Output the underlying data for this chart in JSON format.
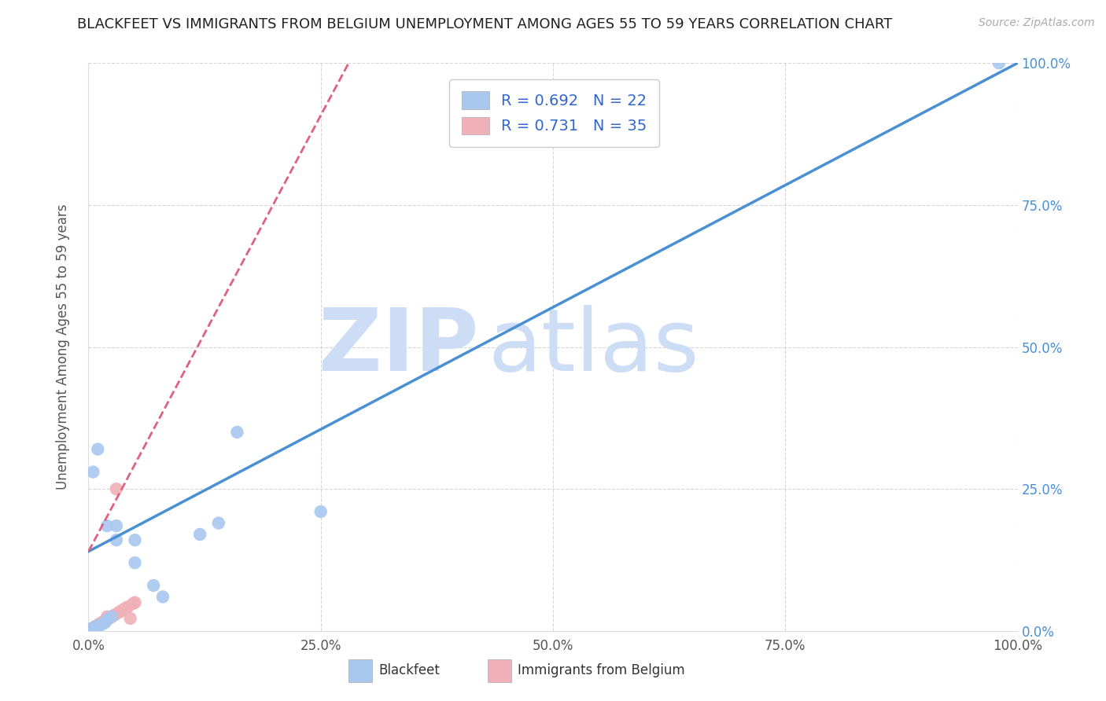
{
  "title": "BLACKFEET VS IMMIGRANTS FROM BELGIUM UNEMPLOYMENT AMONG AGES 55 TO 59 YEARS CORRELATION CHART",
  "source": "Source: ZipAtlas.com",
  "ylabel": "Unemployment Among Ages 55 to 59 years",
  "watermark": "ZIPatlas",
  "xlim": [
    0.0,
    1.0
  ],
  "ylim": [
    0.0,
    1.0
  ],
  "xticks": [
    0.0,
    0.25,
    0.5,
    0.75,
    1.0
  ],
  "yticks": [
    0.0,
    0.25,
    0.5,
    0.75,
    1.0
  ],
  "xticklabels": [
    "0.0%",
    "25.0%",
    "50.0%",
    "75.0%",
    "100.0%"
  ],
  "yticklabels_right": [
    "0.0%",
    "25.0%",
    "50.0%",
    "75.0%",
    "100.0%"
  ],
  "blackfeet_x": [
    0.005,
    0.007,
    0.01,
    0.012,
    0.015,
    0.018,
    0.02,
    0.025,
    0.03,
    0.05,
    0.14,
    0.16,
    0.25,
    0.98,
    0.005,
    0.01,
    0.02,
    0.03,
    0.05,
    0.07,
    0.08,
    0.12
  ],
  "blackfeet_y": [
    0.005,
    0.007,
    0.008,
    0.01,
    0.012,
    0.015,
    0.02,
    0.025,
    0.185,
    0.16,
    0.19,
    0.35,
    0.21,
    1.0,
    0.28,
    0.32,
    0.185,
    0.16,
    0.12,
    0.08,
    0.06,
    0.17
  ],
  "belgium_x": [
    0.0,
    0.001,
    0.002,
    0.003,
    0.004,
    0.005,
    0.006,
    0.007,
    0.008,
    0.009,
    0.01,
    0.011,
    0.012,
    0.013,
    0.014,
    0.015,
    0.016,
    0.017,
    0.018,
    0.019,
    0.02,
    0.022,
    0.025,
    0.028,
    0.03,
    0.032,
    0.035,
    0.038,
    0.04,
    0.042,
    0.045,
    0.048,
    0.05,
    0.0,
    0.001
  ],
  "belgium_y": [
    0.0,
    0.001,
    0.002,
    0.003,
    0.004,
    0.005,
    0.006,
    0.007,
    0.008,
    0.009,
    0.01,
    0.011,
    0.012,
    0.013,
    0.014,
    0.015,
    0.016,
    0.017,
    0.018,
    0.019,
    0.025,
    0.022,
    0.025,
    0.028,
    0.25,
    0.032,
    0.035,
    0.038,
    0.04,
    0.042,
    0.022,
    0.048,
    0.05,
    0.001,
    0.0
  ],
  "blackfeet_color": "#a8c8f0",
  "belgium_color": "#f0b0b8",
  "blackfeet_line_color": "#4a8fd4",
  "belgium_line_color": "#e06080",
  "blackfeet_R": 0.692,
  "blackfeet_N": 22,
  "belgium_R": 0.731,
  "belgium_N": 35,
  "legend_label_blackfeet": "Blackfeet",
  "legend_label_belgium": "Immigrants from Belgium",
  "background_color": "#ffffff",
  "grid_color": "#cccccc",
  "title_fontsize": 13,
  "axis_label_fontsize": 12,
  "tick_fontsize": 12,
  "legend_fontsize": 14,
  "watermark_color": "#ccddf5",
  "watermark_fontsize": 80,
  "right_tick_color": "#4a8fd4"
}
